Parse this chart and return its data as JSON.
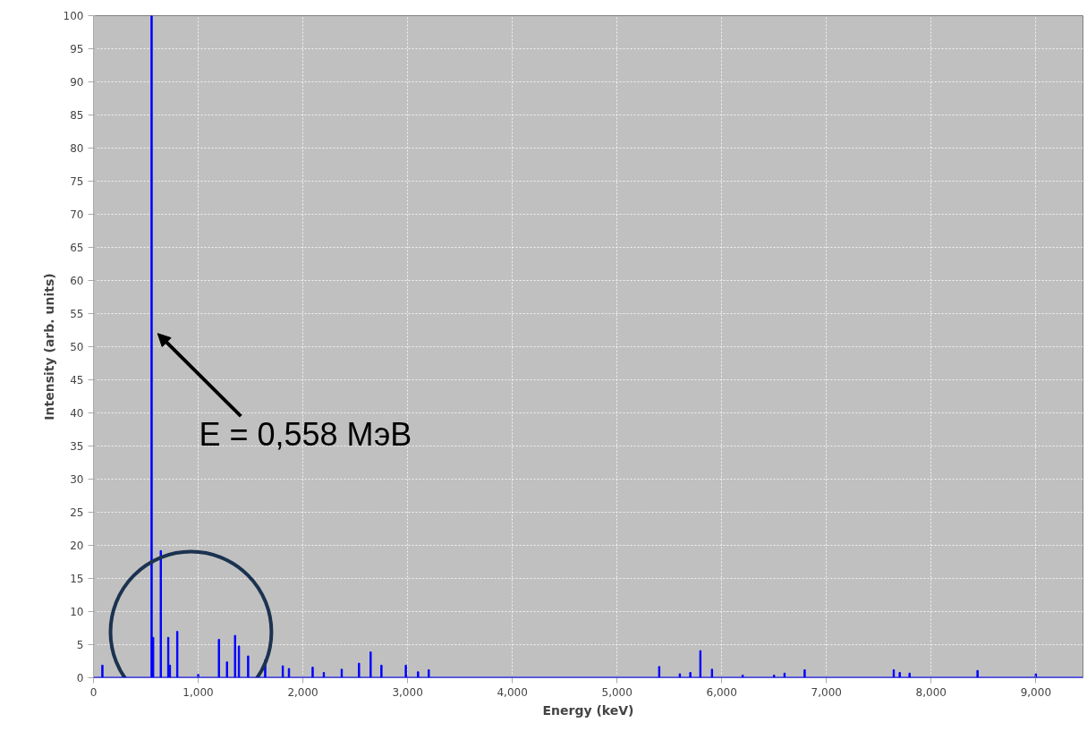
{
  "chart_data": {
    "type": "bar",
    "xlabel": "Energy (keV)",
    "ylabel": "Intensity (arb. units)",
    "x": [
      85,
      555,
      570,
      643,
      714,
      730,
      800,
      1000,
      1198,
      1275,
      1352,
      1389,
      1477,
      1640,
      1808,
      1867,
      2093,
      2200,
      2371,
      2536,
      2647,
      2750,
      2983,
      3100,
      3202,
      5403,
      5600,
      5700,
      5796,
      5907,
      6200,
      6500,
      6600,
      6792,
      7643,
      7700,
      7794,
      8443,
      9000
    ],
    "series": [
      {
        "color": "#0000ff",
        "values": [
          1.9,
          100,
          6.1,
          19.2,
          6.1,
          1.9,
          7.0,
          0.5,
          5.8,
          2.4,
          6.4,
          4.8,
          3.3,
          2.7,
          1.8,
          1.4,
          1.6,
          0.8,
          1.3,
          2.2,
          3.9,
          1.9,
          1.9,
          0.9,
          1.2,
          1.7,
          0.6,
          0.8,
          4.1,
          1.3,
          0.4,
          0.4,
          0.7,
          1.2,
          1.2,
          0.8,
          0.7,
          1.1,
          0.6
        ]
      }
    ],
    "xlim": [
      0,
      9450
    ],
    "ylim": [
      0,
      100
    ],
    "xticks": [
      0,
      {
        "value": 1000,
        "label": "1,000"
      },
      {
        "value": 2000,
        "label": "2,000"
      },
      {
        "value": 3000,
        "label": "3,000"
      },
      {
        "value": 4000,
        "label": "4,000"
      },
      {
        "value": 5000,
        "label": "5,000"
      },
      {
        "value": 6000,
        "label": "6,000"
      },
      {
        "value": 7000,
        "label": "7,000"
      },
      {
        "value": 8000,
        "label": "8,000"
      },
      {
        "value": 9000,
        "label": "9,000"
      }
    ],
    "yticks": [
      0,
      5,
      10,
      15,
      20,
      25,
      30,
      35,
      40,
      45,
      50,
      55,
      60,
      65,
      70,
      75,
      80,
      85,
      90,
      95,
      100
    ],
    "ref_lines": [
      {
        "axis": "y",
        "value": 0,
        "color": "#0000ff"
      }
    ],
    "annotations": [
      {
        "text": "E = 0,558 МэВ",
        "x": 558,
        "y": 52
      }
    ],
    "grid": true
  }
}
